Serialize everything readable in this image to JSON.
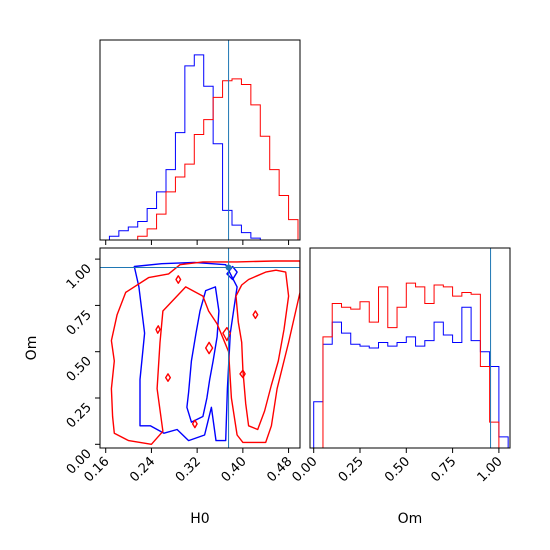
{
  "chart_data": {
    "type": "corner",
    "colors": {
      "series_a": "#0000ff",
      "series_b": "#ff0000",
      "truth": "#1f77b4"
    },
    "parameters": [
      {
        "name": "H0",
        "range": [
          0.15,
          0.5
        ],
        "ticks": [
          0.16,
          0.24,
          0.32,
          0.4,
          0.48
        ],
        "tick_labels": [
          "0.16",
          "0.24",
          "0.32",
          "0.40",
          "0.48"
        ],
        "truth": 0.375
      },
      {
        "name": "Om",
        "range": [
          -0.02,
          1.06
        ],
        "ticks": [
          0.0,
          0.25,
          0.5,
          0.75,
          1.0
        ],
        "tick_labels": [
          "0.00",
          "0.25",
          "0.50",
          "0.75",
          "1.00"
        ],
        "truth": 0.955
      }
    ],
    "xlabels": [
      "H0",
      "Om"
    ],
    "ylabel": "Om",
    "hist_H0": {
      "bin_edges": [
        0.15,
        0.1665,
        0.183,
        0.1995,
        0.216,
        0.2325,
        0.249,
        0.2655,
        0.282,
        0.2985,
        0.315,
        0.3315,
        0.348,
        0.3645,
        0.381,
        0.3975,
        0.414,
        0.4305,
        0.447,
        0.4635,
        0.48,
        0.4965
      ],
      "series": [
        {
          "name": "blue",
          "values": [
            0.0,
            0.02,
            0.05,
            0.07,
            0.1,
            0.17,
            0.26,
            0.38,
            0.58,
            0.94,
            1.0,
            0.83,
            0.52,
            0.16,
            0.08,
            0.04,
            0.01,
            0.0,
            0.0,
            0.0,
            0.0
          ]
        },
        {
          "name": "red",
          "values": [
            0.0,
            0.0,
            0.0,
            0.0,
            0.02,
            0.06,
            0.14,
            0.26,
            0.34,
            0.41,
            0.57,
            0.65,
            0.77,
            0.86,
            0.87,
            0.84,
            0.73,
            0.56,
            0.38,
            0.24,
            0.11
          ]
        }
      ]
    },
    "hist_Om": {
      "bin_edges": [
        0.0,
        0.05,
        0.1,
        0.15,
        0.2,
        0.25,
        0.3,
        0.35,
        0.4,
        0.45,
        0.5,
        0.55,
        0.6,
        0.65,
        0.7,
        0.75,
        0.8,
        0.85,
        0.9,
        0.95,
        1.0,
        1.05
      ],
      "series": [
        {
          "name": "blue",
          "values": [
            0.25,
            0.56,
            0.68,
            0.62,
            0.56,
            0.55,
            0.54,
            0.57,
            0.55,
            0.57,
            0.6,
            0.55,
            0.58,
            0.68,
            0.61,
            0.57,
            0.76,
            0.58,
            0.52,
            0.44,
            0.06
          ]
        },
        {
          "name": "red",
          "values": [
            0.0,
            0.6,
            0.78,
            0.76,
            0.75,
            0.79,
            0.68,
            0.87,
            0.65,
            0.76,
            0.89,
            0.87,
            0.78,
            0.88,
            0.87,
            0.82,
            0.84,
            0.83,
            0.44,
            0.14,
            0.0
          ]
        }
      ]
    },
    "contours": [
      {
        "series": "blue",
        "level": "outer",
        "points": [
          [
            0.21,
            0.96
          ],
          [
            0.258,
            0.975
          ],
          [
            0.315,
            0.982
          ],
          [
            0.37,
            0.97
          ],
          [
            0.39,
            0.85
          ],
          [
            0.378,
            0.6
          ],
          [
            0.373,
            0.3
          ],
          [
            0.37,
            0.02
          ],
          [
            0.353,
            0.02
          ],
          [
            0.345,
            0.2
          ],
          [
            0.333,
            0.05
          ],
          [
            0.305,
            0.02
          ],
          [
            0.285,
            0.08
          ],
          [
            0.262,
            0.06
          ],
          [
            0.238,
            0.1
          ],
          [
            0.22,
            0.1
          ],
          [
            0.22,
            0.35
          ],
          [
            0.228,
            0.6
          ],
          [
            0.218,
            0.85
          ],
          [
            0.21,
            0.96
          ]
        ]
      },
      {
        "series": "blue",
        "level": "inner",
        "points": [
          [
            0.335,
            0.83
          ],
          [
            0.352,
            0.85
          ],
          [
            0.358,
            0.72
          ],
          [
            0.355,
            0.58
          ],
          [
            0.348,
            0.45
          ],
          [
            0.342,
            0.35
          ],
          [
            0.337,
            0.25
          ],
          [
            0.33,
            0.15
          ],
          [
            0.31,
            0.12
          ],
          [
            0.302,
            0.2
          ],
          [
            0.305,
            0.28
          ],
          [
            0.31,
            0.45
          ],
          [
            0.318,
            0.6
          ],
          [
            0.325,
            0.72
          ],
          [
            0.335,
            0.83
          ]
        ]
      },
      {
        "series": "blue",
        "level": "inner",
        "points": [
          [
            0.372,
            0.92
          ],
          [
            0.382,
            0.96
          ],
          [
            0.39,
            0.93
          ],
          [
            0.382,
            0.89
          ],
          [
            0.372,
            0.92
          ]
        ]
      },
      {
        "series": "red",
        "level": "outer",
        "points": [
          [
            0.17,
            0.56
          ],
          [
            0.18,
            0.7
          ],
          [
            0.195,
            0.82
          ],
          [
            0.235,
            0.9
          ],
          [
            0.27,
            0.92
          ],
          [
            0.29,
            0.97
          ],
          [
            0.33,
            0.985
          ],
          [
            0.39,
            0.985
          ],
          [
            0.455,
            0.99
          ],
          [
            0.5,
            0.99
          ],
          [
            0.5,
            0.82
          ],
          [
            0.48,
            0.55
          ],
          [
            0.46,
            0.3
          ],
          [
            0.45,
            0.1
          ],
          [
            0.44,
            0.01
          ],
          [
            0.4,
            0.01
          ],
          [
            0.39,
            0.05
          ],
          [
            0.38,
            0.25
          ],
          [
            0.375,
            0.5
          ],
          [
            0.355,
            0.65
          ],
          [
            0.34,
            0.72
          ],
          [
            0.33,
            0.8
          ],
          [
            0.3,
            0.85
          ],
          [
            0.26,
            0.72
          ],
          [
            0.255,
            0.55
          ],
          [
            0.25,
            0.3
          ],
          [
            0.26,
            0.07
          ],
          [
            0.24,
            0.0
          ],
          [
            0.2,
            0.02
          ],
          [
            0.175,
            0.06
          ],
          [
            0.172,
            0.15
          ],
          [
            0.17,
            0.3
          ],
          [
            0.175,
            0.45
          ],
          [
            0.17,
            0.56
          ]
        ]
      },
      {
        "series": "red",
        "level": "inner",
        "points": [
          [
            0.388,
            0.8
          ],
          [
            0.398,
            0.86
          ],
          [
            0.41,
            0.89
          ],
          [
            0.425,
            0.91
          ],
          [
            0.44,
            0.93
          ],
          [
            0.458,
            0.94
          ],
          [
            0.475,
            0.93
          ],
          [
            0.48,
            0.8
          ],
          [
            0.472,
            0.62
          ],
          [
            0.462,
            0.45
          ],
          [
            0.45,
            0.32
          ],
          [
            0.438,
            0.18
          ],
          [
            0.426,
            0.08
          ],
          [
            0.41,
            0.1
          ],
          [
            0.405,
            0.22
          ],
          [
            0.4,
            0.4
          ],
          [
            0.398,
            0.55
          ],
          [
            0.392,
            0.66
          ],
          [
            0.388,
            0.8
          ]
        ]
      },
      {
        "series": "red",
        "level": "inner",
        "points": [
          [
            0.365,
            0.6
          ],
          [
            0.372,
            0.63
          ],
          [
            0.378,
            0.6
          ],
          [
            0.372,
            0.56
          ],
          [
            0.365,
            0.6
          ]
        ]
      },
      {
        "series": "red",
        "level": "inner",
        "points": [
          [
            0.248,
            0.62
          ],
          [
            0.252,
            0.64
          ],
          [
            0.255,
            0.62
          ],
          [
            0.251,
            0.6
          ],
          [
            0.248,
            0.62
          ]
        ]
      },
      {
        "series": "red",
        "level": "inner",
        "points": [
          [
            0.312,
            0.11
          ],
          [
            0.316,
            0.13
          ],
          [
            0.32,
            0.11
          ],
          [
            0.316,
            0.09
          ],
          [
            0.312,
            0.11
          ]
        ]
      },
      {
        "series": "red",
        "level": "inner",
        "points": [
          [
            0.283,
            0.89
          ],
          [
            0.287,
            0.91
          ],
          [
            0.291,
            0.89
          ],
          [
            0.287,
            0.87
          ],
          [
            0.283,
            0.89
          ]
        ]
      },
      {
        "series": "red",
        "level": "inner",
        "points": [
          [
            0.335,
            0.52
          ],
          [
            0.341,
            0.55
          ],
          [
            0.347,
            0.52
          ],
          [
            0.341,
            0.49
          ],
          [
            0.335,
            0.52
          ]
        ]
      },
      {
        "series": "red",
        "level": "inner",
        "points": [
          [
            0.395,
            0.38
          ],
          [
            0.4,
            0.4
          ],
          [
            0.404,
            0.38
          ],
          [
            0.4,
            0.36
          ],
          [
            0.395,
            0.38
          ]
        ]
      },
      {
        "series": "red",
        "level": "inner",
        "points": [
          [
            0.265,
            0.36
          ],
          [
            0.269,
            0.38
          ],
          [
            0.273,
            0.36
          ],
          [
            0.269,
            0.34
          ],
          [
            0.265,
            0.36
          ]
        ]
      },
      {
        "series": "red",
        "level": "inner",
        "points": [
          [
            0.418,
            0.7
          ],
          [
            0.422,
            0.72
          ],
          [
            0.426,
            0.7
          ],
          [
            0.422,
            0.68
          ],
          [
            0.418,
            0.7
          ]
        ]
      }
    ]
  }
}
